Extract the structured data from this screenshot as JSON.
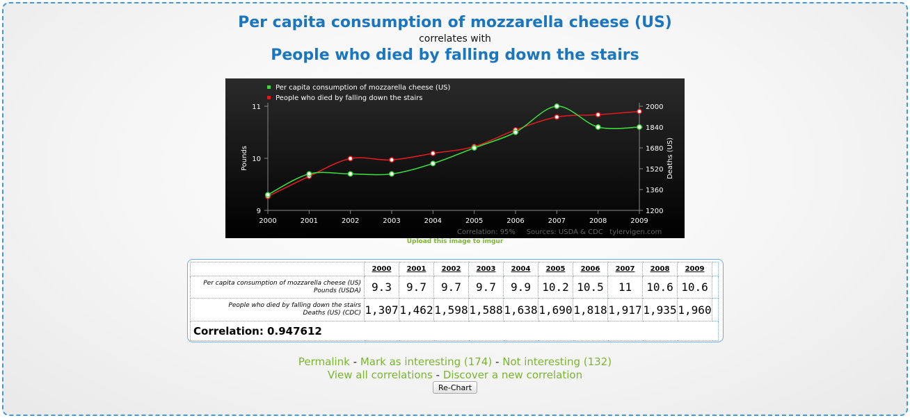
{
  "header": {
    "title1": "Per capita consumption of mozzarella cheese (US)",
    "correlates": "correlates with",
    "title2": "People who died by falling down the stairs"
  },
  "chart_data": {
    "type": "line",
    "x": [
      2000,
      2001,
      2002,
      2003,
      2004,
      2005,
      2006,
      2007,
      2008,
      2009
    ],
    "series": [
      {
        "name": "Per capita consumption of mozzarella cheese (US)",
        "values": [
          9.3,
          9.7,
          9.7,
          9.7,
          9.9,
          10.2,
          10.5,
          11,
          10.6,
          10.6
        ],
        "axis": "left",
        "color": "#3cd83c"
      },
      {
        "name": "People who died by falling down the stairs",
        "values": [
          1307,
          1462,
          1598,
          1588,
          1638,
          1690,
          1818,
          1917,
          1935,
          1960
        ],
        "axis": "right",
        "color": "#e01b1b"
      }
    ],
    "ylabel": "Pounds",
    "y2label": "Deaths (US)",
    "ylim": [
      9,
      11
    ],
    "y2lim": [
      1200,
      2000
    ],
    "yticks": [
      "9",
      "10",
      "11"
    ],
    "y2ticks": [
      "1200",
      "1360",
      "1520",
      "1680",
      "1840",
      "2000"
    ],
    "legend_position": "top-left",
    "grid": false,
    "footer": "Correlation: 95%     Sources: USDA & CDC   tylervigen.com",
    "background": "#000000"
  },
  "upload_link": "Upload this image to imgur",
  "table": {
    "years": [
      "2000",
      "2001",
      "2002",
      "2003",
      "2004",
      "2005",
      "2006",
      "2007",
      "2008",
      "2009"
    ],
    "row1": {
      "label": "Per capita consumption of mozzarella cheese (US)",
      "unit": "Pounds (USDA)",
      "values": [
        "9.3",
        "9.7",
        "9.7",
        "9.7",
        "9.9",
        "10.2",
        "10.5",
        "11",
        "10.6",
        "10.6"
      ]
    },
    "row2": {
      "label": "People who died by falling down the stairs",
      "unit": "Deaths (US) (CDC)",
      "values": [
        "1,307",
        "1,462",
        "1,598",
        "1,588",
        "1,638",
        "1,690",
        "1,818",
        "1,917",
        "1,935",
        "1,960"
      ]
    },
    "correlation": "Correlation: 0.947612"
  },
  "links": {
    "permalink": "Permalink",
    "mark_interesting": "Mark as interesting (174)",
    "not_interesting": "Not interesting (132)",
    "view_all": "View all correlations",
    "discover": "Discover a new correlation",
    "sep": "-"
  },
  "button": {
    "rechart": "Re-Chart"
  },
  "colors": {
    "accent": "#1a76bd",
    "link": "#79b530",
    "frame": "#3d9ad8"
  }
}
